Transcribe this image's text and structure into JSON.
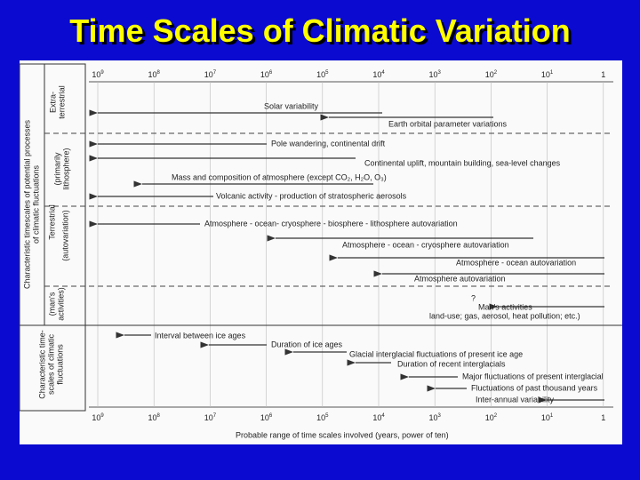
{
  "title": "Time Scales of Climatic Variation",
  "axis": {
    "ticks": [
      {
        "base": "10",
        "exp": "9"
      },
      {
        "base": "10",
        "exp": "8"
      },
      {
        "base": "10",
        "exp": "7"
      },
      {
        "base": "10",
        "exp": "6"
      },
      {
        "base": "10",
        "exp": "5"
      },
      {
        "base": "10",
        "exp": "4"
      },
      {
        "base": "10",
        "exp": "3"
      },
      {
        "base": "10",
        "exp": "2"
      },
      {
        "base": "10",
        "exp": "1"
      },
      {
        "base": "1"
      }
    ],
    "label": "Probable range of time scales involved (years, power of ten)"
  },
  "side_labels": {
    "processes": [
      "Characteristic timescales of potential processes",
      "of climatic fluctuations"
    ],
    "extra_terrestrial": [
      "Extra-",
      "terrestrial"
    ],
    "lithosphere": [
      "(primarily",
      "lithosphere)"
    ],
    "terrestrial": "Terrestrial",
    "autovariation": "(autovariation)",
    "man": [
      "(man's",
      "activities)"
    ],
    "fluctuations": [
      "Characteristic time-",
      "scales of climatic",
      "fluctuations"
    ]
  },
  "processes": [
    {
      "label": [
        "Solar variability"
      ]
    },
    {
      "label": [
        "Earth orbital parameter variations"
      ]
    },
    {
      "label": [
        "Pole wandering, continental drift"
      ]
    },
    {
      "label": [
        "Continental uplift, mountain building, sea-level changes"
      ]
    },
    {
      "label": [
        "Mass and composition of atmosphere (except CO₂, H₂O, O₃)"
      ]
    },
    {
      "label": [
        "Volcanic activity - production of stratospheric aerosols"
      ]
    },
    {
      "label": [
        "Atmosphere - ocean- cryosphere - biosphere - lithosphere autovariation"
      ]
    },
    {
      "label": [
        "Atmosphere - ocean - cryosphere autovariation"
      ]
    },
    {
      "label": [
        "Atmosphere - ocean autovariation"
      ]
    },
    {
      "label": [
        "Atmosphere autovariation"
      ]
    },
    {
      "label": [
        "?",
        "Man's activities",
        "land-use; gas, aerosol, heat pollution; etc.)"
      ]
    }
  ],
  "fluctuations": [
    {
      "label": [
        "Interval between ice ages"
      ]
    },
    {
      "label": [
        "Duration of ice ages"
      ]
    },
    {
      "label": [
        "Glacial interglacial fluctuations of present ice age"
      ]
    },
    {
      "label": [
        "Duration of recent interglacials"
      ]
    },
    {
      "label": [
        "Major fluctuations of present interglacial"
      ]
    },
    {
      "label": [
        "Fluctuations of past thousand years"
      ]
    },
    {
      "label": [
        "Inter-annual variability"
      ]
    }
  ]
}
